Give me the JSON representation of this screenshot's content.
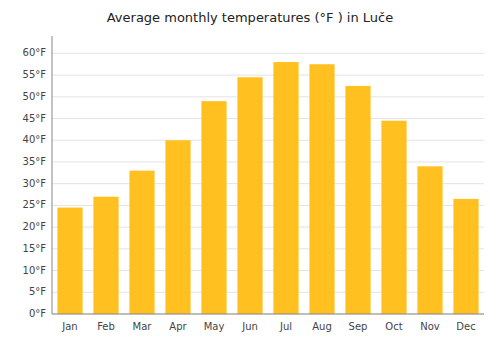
{
  "chart_data": {
    "type": "bar",
    "title": "Average monthly temperatures (°F ) in Luče",
    "categories": [
      "Jan",
      "Feb",
      "Mar",
      "Apr",
      "May",
      "Jun",
      "Jul",
      "Aug",
      "Sep",
      "Oct",
      "Nov",
      "Dec"
    ],
    "values": [
      24.5,
      27.0,
      33.0,
      40.0,
      49.0,
      54.5,
      58.0,
      57.5,
      52.5,
      44.5,
      34.0,
      26.5
    ],
    "color": "#FFC020",
    "ylim": [
      0,
      64
    ],
    "yticks": [
      {
        "value": 0,
        "label": "0°F"
      },
      {
        "value": 5,
        "label": "5°F"
      },
      {
        "value": 10,
        "label": "10°F"
      },
      {
        "value": 15,
        "label": "15°F"
      },
      {
        "value": 20,
        "label": "20°F"
      },
      {
        "value": 25,
        "label": "25°F"
      },
      {
        "value": 30,
        "label": "30°F"
      },
      {
        "value": 35,
        "label": "35°F"
      },
      {
        "value": 40,
        "label": "40°F"
      },
      {
        "value": 45,
        "label": "45°F"
      },
      {
        "value": 50,
        "label": "50°F"
      },
      {
        "value": 55,
        "label": "55°F"
      },
      {
        "value": 60,
        "label": "60°F"
      }
    ],
    "grid": true
  }
}
